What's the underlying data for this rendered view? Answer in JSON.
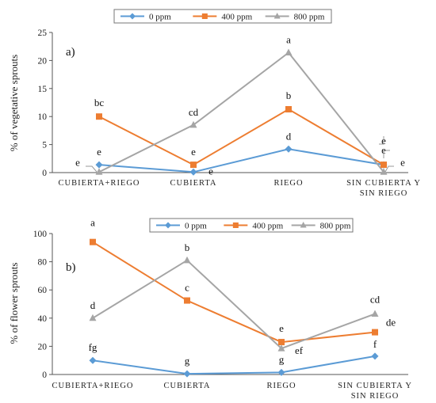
{
  "chart_data": [
    {
      "type": "line",
      "panel_label": "a)",
      "ylabel": "% of vegetative sprouts",
      "ylim": [
        0,
        25
      ],
      "yticks": [
        0,
        5,
        10,
        15,
        20,
        25
      ],
      "categories": [
        [
          "CUBIERTA+RIEGO"
        ],
        [
          "CUBIERTA"
        ],
        [
          "RIEGO"
        ],
        [
          "SIN CUBIERTA Y",
          "SIN RIEGO"
        ]
      ],
      "legend": "top",
      "series": [
        {
          "name": "0 ppm",
          "color": "#5b9bd5",
          "marker": "diamond",
          "values": [
            1.4,
            0.1,
            4.2,
            1.4
          ],
          "labels": [
            "e",
            "e",
            "d",
            "e"
          ]
        },
        {
          "name": "400 ppm",
          "color": "#ed7d31",
          "marker": "square",
          "values": [
            10.0,
            1.4,
            11.3,
            1.4
          ],
          "labels": [
            "bc",
            "e",
            "b",
            "e"
          ]
        },
        {
          "name": "800 ppm",
          "color": "#a5a5a5",
          "marker": "triangle",
          "values": [
            0.1,
            8.5,
            21.4,
            0.1
          ],
          "labels": [
            "e",
            "cd",
            "a",
            "e"
          ]
        }
      ]
    },
    {
      "type": "line",
      "panel_label": "b)",
      "ylabel": "% of flower sprouts",
      "ylim": [
        0,
        100
      ],
      "yticks": [
        0,
        20,
        40,
        60,
        80,
        100
      ],
      "categories": [
        [
          "CUBIERTA+RIEGO"
        ],
        [
          "CUBIERTA"
        ],
        [
          "RIEGO"
        ],
        [
          "SIN CUBIERTA Y",
          "SIN RIEGO"
        ]
      ],
      "legend": "top",
      "series": [
        {
          "name": "0 ppm",
          "color": "#5b9bd5",
          "marker": "diamond",
          "values": [
            10,
            0.5,
            1.5,
            13
          ],
          "labels": [
            "fg",
            "g",
            "g",
            "f"
          ]
        },
        {
          "name": "400 ppm",
          "color": "#ed7d31",
          "marker": "square",
          "values": [
            94,
            52.5,
            23,
            30
          ],
          "labels": [
            "a",
            "c",
            "e",
            "de"
          ]
        },
        {
          "name": "800 ppm",
          "color": "#a5a5a5",
          "marker": "triangle",
          "values": [
            40,
            81,
            18.5,
            43
          ],
          "labels": [
            "d",
            "b",
            "ef",
            "cd"
          ]
        }
      ]
    }
  ]
}
